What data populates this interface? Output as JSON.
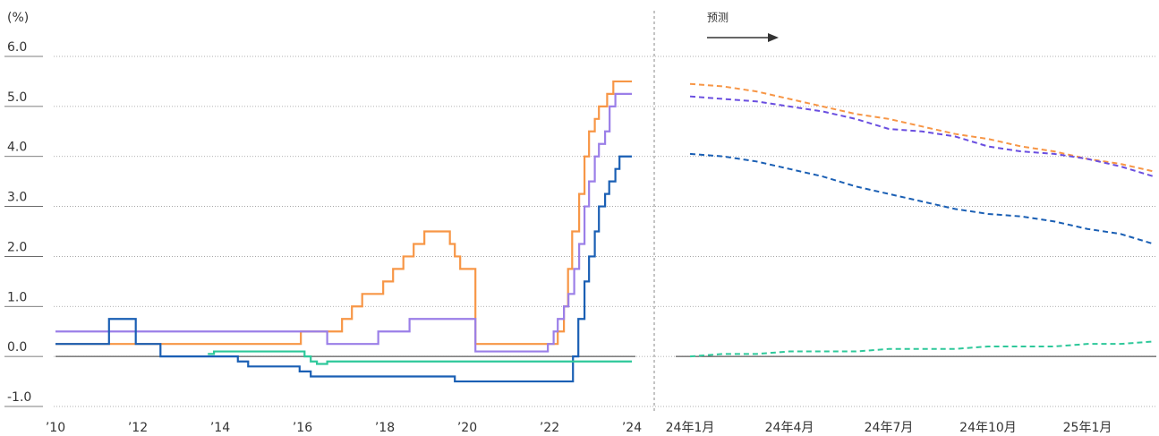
{
  "chart_data": [
    {
      "type": "step",
      "ylabel": "(%)",
      "xlim": [
        2010,
        2024
      ],
      "xticks": [
        {
          "value": 2010,
          "label": "’10"
        },
        {
          "value": 2012,
          "label": "’12"
        },
        {
          "value": 2014,
          "label": "’14"
        },
        {
          "value": 2016,
          "label": "’16"
        },
        {
          "value": 2018,
          "label": "’18"
        },
        {
          "value": 2020,
          "label": "’20"
        },
        {
          "value": 2022,
          "label": "’22"
        },
        {
          "value": 2024,
          "label": "’24"
        }
      ],
      "ylim": [
        -1,
        6
      ],
      "yticks": [
        {
          "value": -1,
          "label": "-1.0"
        },
        {
          "value": 0,
          "label": "0.0"
        },
        {
          "value": 1,
          "label": "1.0"
        },
        {
          "value": 2,
          "label": "2.0"
        },
        {
          "value": 3,
          "label": "3.0"
        },
        {
          "value": 4,
          "label": "4.0"
        },
        {
          "value": 5,
          "label": "5.0"
        },
        {
          "value": 6,
          "label": "6.0"
        }
      ],
      "grid": true,
      "series": [
        {
          "color": "#f79646",
          "x": [
            2010,
            2015.96,
            2016.96,
            2017.2,
            2017.45,
            2017.96,
            2018.2,
            2018.45,
            2018.7,
            2018.96,
            2019.58,
            2019.7,
            2019.83,
            2020.2,
            2022.2,
            2022.35,
            2022.45,
            2022.55,
            2022.72,
            2022.85,
            2022.96,
            2023.1,
            2023.2,
            2023.4,
            2023.55,
            2024
          ],
          "values": [
            0.25,
            0.5,
            0.75,
            1.0,
            1.25,
            1.5,
            1.75,
            2.0,
            2.25,
            2.5,
            2.25,
            2.0,
            1.75,
            0.25,
            0.5,
            1.0,
            1.75,
            2.5,
            3.25,
            4.0,
            4.5,
            4.75,
            5.0,
            5.25,
            5.5,
            5.5
          ]
        },
        {
          "color": "#9b7fe8",
          "x": [
            2010,
            2016.6,
            2017.84,
            2018.6,
            2020.2,
            2021.96,
            2022.1,
            2022.2,
            2022.35,
            2022.46,
            2022.6,
            2022.72,
            2022.85,
            2022.96,
            2023.1,
            2023.2,
            2023.35,
            2023.46,
            2023.6,
            2024
          ],
          "values": [
            0.5,
            0.25,
            0.5,
            0.75,
            0.1,
            0.25,
            0.5,
            0.75,
            1.0,
            1.25,
            1.75,
            2.25,
            3.0,
            3.5,
            4.0,
            4.25,
            4.5,
            5.0,
            5.25,
            5.25
          ]
        },
        {
          "color": "#1a5fb4",
          "x": [
            2010,
            2011.3,
            2011.95,
            2012.55,
            2014.43,
            2014.68,
            2015.93,
            2016.2,
            2019.7,
            2022.57,
            2022.7,
            2022.85,
            2022.96,
            2023.1,
            2023.2,
            2023.35,
            2023.45,
            2023.6,
            2023.7,
            2024
          ],
          "values": [
            0.25,
            0.75,
            0.25,
            0,
            -0.1,
            -0.2,
            -0.3,
            -0.4,
            -0.5,
            0,
            0.75,
            1.5,
            2.0,
            2.5,
            3.0,
            3.25,
            3.5,
            3.75,
            4.0,
            4.0
          ]
        },
        {
          "color": "#2ec89a",
          "x": [
            2013.7,
            2013.85,
            2016.05,
            2016.2,
            2016.35,
            2016.6,
            2024
          ],
          "values": [
            0.05,
            0.1,
            0.0,
            -0.1,
            -0.15,
            -0.1,
            -0.1
          ]
        }
      ]
    },
    {
      "type": "line",
      "annotation": "预测",
      "categories": [
        "24年1月",
        null,
        null,
        "24年4月",
        null,
        null,
        "24年7月",
        null,
        null,
        "24年10月",
        null,
        null,
        "25年1月",
        null,
        null
      ],
      "ylim": [
        -1,
        6
      ],
      "series": [
        {
          "color": "#f79646",
          "values": [
            5.45,
            5.4,
            5.3,
            5.15,
            5.0,
            4.85,
            4.75,
            4.6,
            4.45,
            4.35,
            4.2,
            4.1,
            3.95,
            3.85,
            3.7
          ]
        },
        {
          "color": "#6a4ee0",
          "values": [
            5.2,
            5.15,
            5.1,
            5.0,
            4.9,
            4.75,
            4.55,
            4.5,
            4.4,
            4.2,
            4.1,
            4.05,
            3.95,
            3.8,
            3.6
          ]
        },
        {
          "color": "#1a5fb4",
          "values": [
            4.05,
            4.0,
            3.9,
            3.75,
            3.6,
            3.4,
            3.25,
            3.1,
            2.95,
            2.85,
            2.8,
            2.7,
            2.55,
            2.45,
            2.25
          ]
        },
        {
          "color": "#2ec89a",
          "values": [
            0,
            0.05,
            0.05,
            0.1,
            0.1,
            0.1,
            0.15,
            0.15,
            0.15,
            0.2,
            0.2,
            0.2,
            0.25,
            0.25,
            0.3
          ]
        }
      ]
    }
  ]
}
